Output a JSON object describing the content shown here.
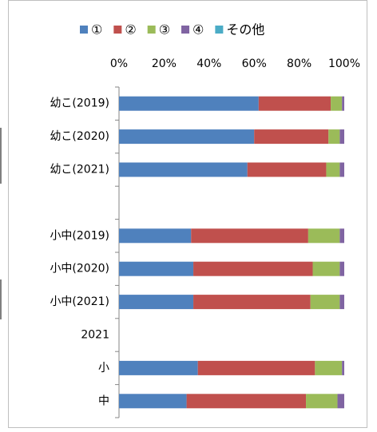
{
  "chart_data": {
    "type": "stacked-bar-horizontal",
    "categories": [
      "幼こ(2019)",
      "幼こ(2020)",
      "幼こ(2021)",
      null,
      "小中(2019)",
      "小中(2020)",
      "小中(2021)",
      "2021",
      "小",
      "中"
    ],
    "series": [
      {
        "name": "①",
        "color": "#4f81bd",
        "values": [
          62,
          60,
          57,
          null,
          32,
          33,
          33,
          null,
          35,
          30
        ]
      },
      {
        "name": "②",
        "color": "#c0504d",
        "values": [
          32,
          33,
          35,
          null,
          52,
          53,
          52,
          null,
          52,
          53
        ]
      },
      {
        "name": "③",
        "color": "#9bbb59",
        "values": [
          5,
          5,
          6,
          null,
          14,
          12,
          13,
          null,
          12,
          14
        ]
      },
      {
        "name": "④",
        "color": "#8064a2",
        "values": [
          1,
          2,
          2,
          null,
          2,
          2,
          2,
          null,
          1,
          3
        ]
      },
      {
        "name": "その他",
        "color": "#4bacc6",
        "values": [
          0,
          0,
          0,
          null,
          0,
          0,
          0,
          null,
          0,
          0
        ]
      }
    ],
    "xlim": [
      0,
      100
    ],
    "xticks": [
      {
        "value": 0,
        "label": "0%"
      },
      {
        "value": 20,
        "label": "20%"
      },
      {
        "value": 40,
        "label": "40%"
      },
      {
        "value": 60,
        "label": "60%"
      },
      {
        "value": 80,
        "label": "80%"
      },
      {
        "value": 100,
        "label": "100%"
      }
    ],
    "legend": "top"
  }
}
